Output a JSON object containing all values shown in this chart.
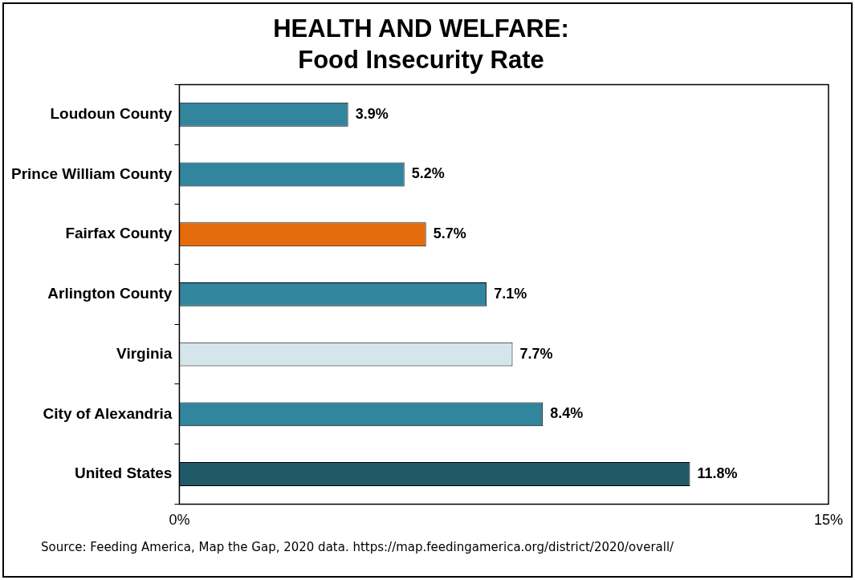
{
  "chart_data": {
    "type": "bar",
    "orientation": "horizontal",
    "title": "HEALTH AND WELFARE:",
    "subtitle": "Food Insecurity Rate",
    "categories": [
      "Loudoun County",
      "Prince William County",
      "Fairfax County",
      "Arlington County",
      "Virginia",
      "City of Alexandria",
      "United States"
    ],
    "values": [
      3.9,
      5.2,
      5.7,
      7.1,
      7.7,
      8.4,
      11.8
    ],
    "colors": [
      "#31859c",
      "#31859c",
      "#e46c0a",
      "#31859c",
      "#d4e6ec",
      "#31859c",
      "#215968"
    ],
    "value_labels": [
      "3.9%",
      "5.2%",
      "5.7%",
      "7.1%",
      "7.7%",
      "8.4%",
      "11.8%"
    ],
    "xlim": [
      0,
      15
    ],
    "xticks": [
      {
        "value": 0,
        "label": "0%"
      },
      {
        "value": 15,
        "label": "15%"
      }
    ],
    "grid": false,
    "legend": false,
    "annotations": [
      "Source: Feeding America, Map the Gap, 2020 data. https://map.feedingamerica.org/district/2020/overall/"
    ]
  }
}
